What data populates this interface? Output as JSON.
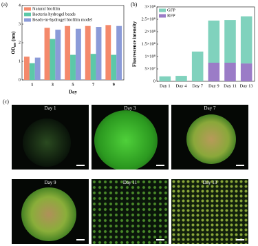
{
  "chart_data": [
    {
      "type": "bar",
      "panel": "(a)",
      "x_label": "Day",
      "y_label": "OD₆₀₀ (nm)",
      "categories": [
        "1",
        "3",
        "5",
        "7",
        "9"
      ],
      "series": [
        {
          "name": "Natural biofilm",
          "color": "#f4896b",
          "values": [
            1.25,
            2.8,
            2.9,
            2.9,
            2.95
          ]
        },
        {
          "name": "Bacteria hydrogel beads",
          "color": "#5cc8a8",
          "values": [
            0.9,
            2.2,
            1.35,
            1.4,
            1.35
          ]
        },
        {
          "name": "Beads-in-hydrogel biofilm model",
          "color": "#8b9bd8",
          "values": [
            1.2,
            2.7,
            2.75,
            2.85,
            2.9
          ]
        }
      ],
      "ylim": [
        0,
        4
      ],
      "yticks": [
        0,
        1,
        2,
        3,
        4
      ],
      "legend": "top-left"
    },
    {
      "type": "stacked_bar",
      "panel": "(b)",
      "y_label": "Fluorescence intensity",
      "categories": [
        "Day 1",
        "Day 4",
        "Day 7",
        "Day 9",
        "Day 11",
        "Day 13"
      ],
      "series": [
        {
          "name": "RFP",
          "color": "#9b7cc7",
          "values": [
            0,
            0,
            0,
            75000000,
            75000000,
            72000000
          ]
        },
        {
          "name": "GFP",
          "color": "#80d2bd",
          "values": [
            20000000,
            22000000,
            120000000,
            170000000,
            172000000,
            190000000
          ]
        }
      ],
      "ylim": [
        0,
        300000000
      ],
      "yticks": [
        0,
        {
          "value": 50000000,
          "label": "5×10⁷"
        },
        {
          "value": 100000000,
          "label": "1×10⁸"
        },
        {
          "value": 150000000,
          "label": "1.5×10⁸"
        },
        {
          "value": 200000000,
          "label": "2×10⁸"
        },
        {
          "value": 250000000,
          "label": "2.5×10⁸"
        },
        {
          "value": 300000000,
          "label": "3×10⁸"
        }
      ],
      "legend": "top-left"
    }
  ],
  "images": {
    "panel": "(c)",
    "labels": [
      "Day 1",
      "Day 3",
      "Day 7",
      "Day 9",
      "Day 11",
      "Day 13"
    ]
  }
}
